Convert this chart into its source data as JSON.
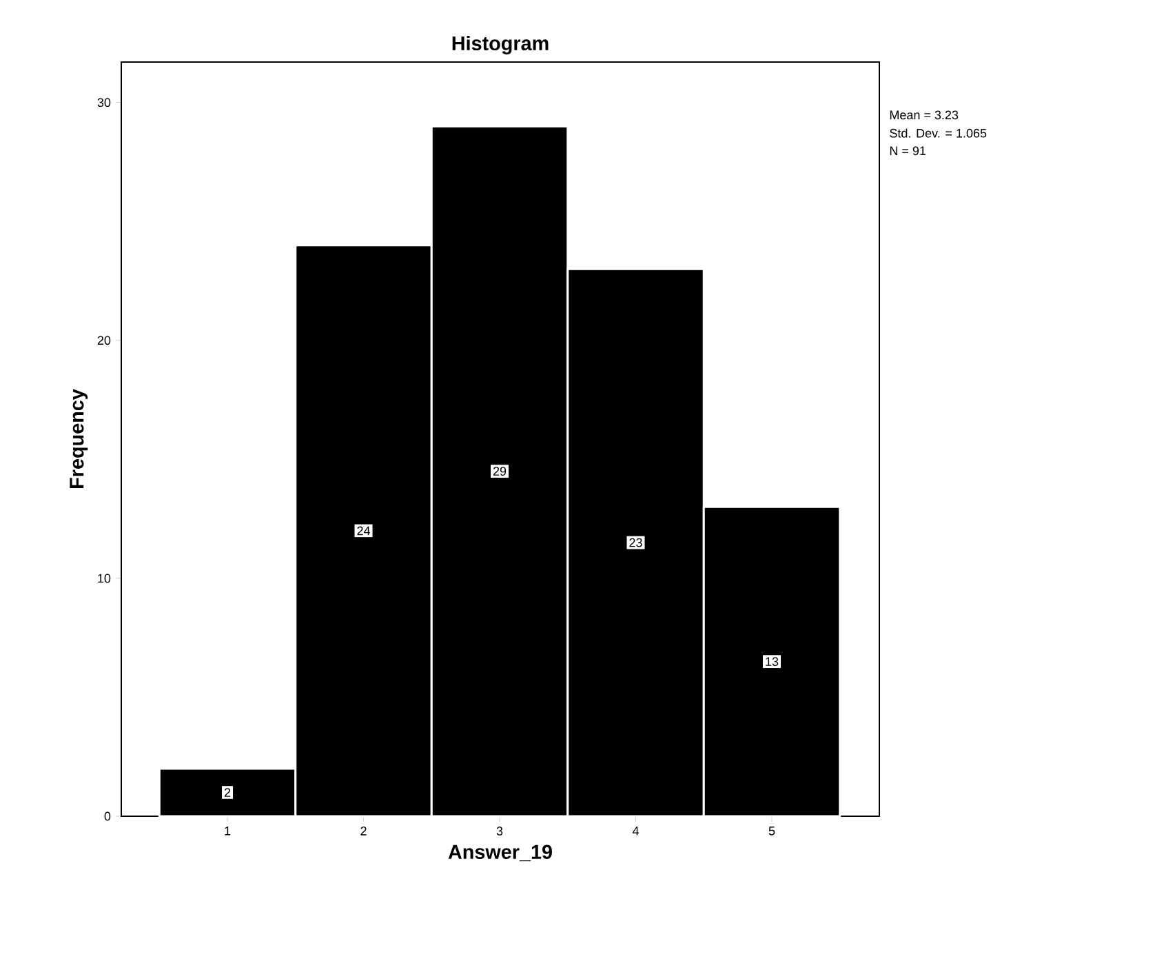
{
  "chart_data": {
    "type": "histogram",
    "title": "Histogram",
    "xlabel": "Answer_19",
    "ylabel": "Frequency",
    "bins": [
      0.5,
      1.5,
      2.5,
      3.5,
      4.5,
      5.5
    ],
    "values": [
      2,
      24,
      29,
      23,
      13
    ],
    "color": "#000000",
    "xlim": [
      0.22,
      5.79
    ],
    "ylim": [
      0,
      31.7
    ],
    "xticks": [
      1,
      2,
      3,
      4,
      5
    ],
    "yticks": [
      0,
      10,
      20,
      30
    ],
    "data_labels": true,
    "annotations": [
      "Mean = 3.23",
      "Std. Dev. = 1.065",
      "N = 91"
    ]
  }
}
